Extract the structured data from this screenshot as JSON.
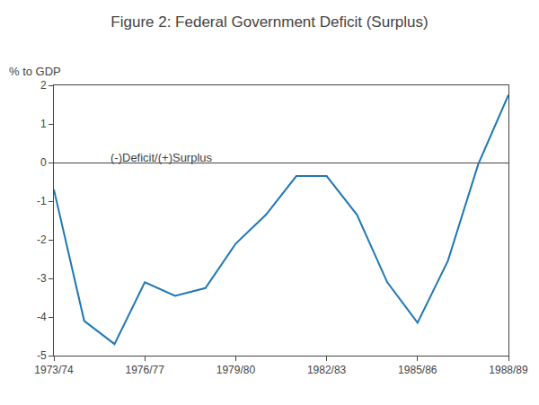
{
  "chart_data": {
    "type": "line",
    "title": "Figure 2: Federal Government Deficit (Surplus)",
    "ylabel": "% to GDP",
    "annotation": "(-)Deficit/(+)Surplus",
    "categories": [
      "1973/74",
      null,
      null,
      "1976/77",
      null,
      null,
      "1979/80",
      null,
      null,
      "1982/83",
      null,
      null,
      "1985/86",
      null,
      null,
      "1988/89"
    ],
    "values": [
      -0.7,
      -4.1,
      -4.7,
      -3.1,
      -3.45,
      -3.25,
      -2.1,
      -1.35,
      -0.35,
      -0.35,
      -1.35,
      -3.1,
      -4.15,
      -2.55,
      -0.05,
      1.75
    ],
    "ylim": [
      -5,
      2
    ],
    "yticks": [
      -5,
      -4,
      -3,
      -2,
      -1,
      0,
      1,
      2
    ],
    "grid": false
  }
}
